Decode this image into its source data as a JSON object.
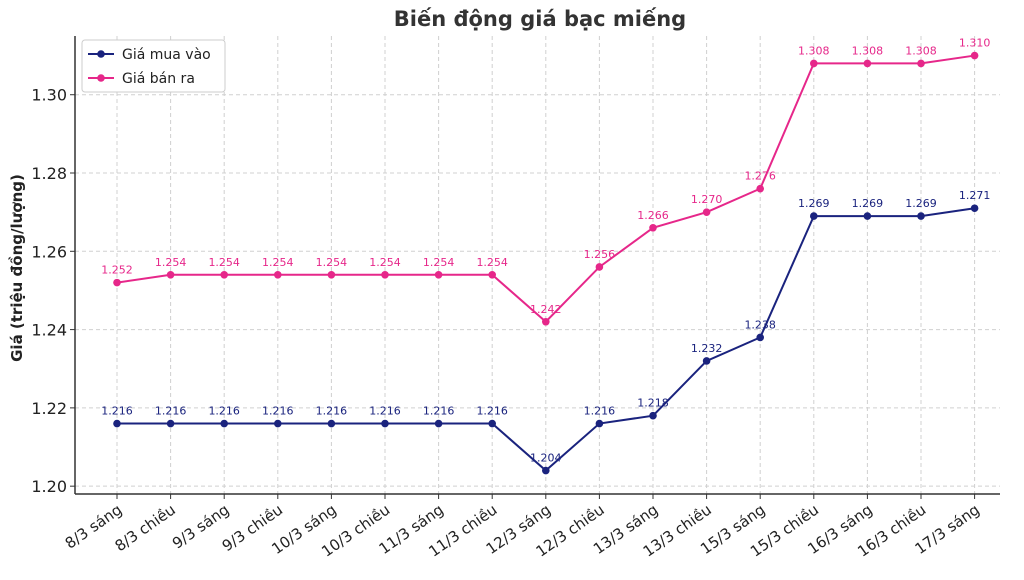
{
  "chart_data": {
    "type": "line",
    "title": "Biến động giá bạc miếng",
    "xlabel": "",
    "ylabel": "Giá (triệu đồng/lượng)",
    "categories": [
      "8/3 sáng",
      "8/3 chiều",
      "9/3 sáng",
      "9/3 chiều",
      "10/3 sáng",
      "10/3 chiều",
      "11/3 sáng",
      "11/3 chiều",
      "12/3 sáng",
      "12/3 chiều",
      "13/3 sáng",
      "13/3 chiều",
      "15/3 sáng",
      "15/3 chiều",
      "16/3 sáng",
      "16/3 chiều",
      "17/3 sáng"
    ],
    "ylim": [
      1.198,
      1.315
    ],
    "yticks": [
      1.2,
      1.22,
      1.24,
      1.26,
      1.28,
      1.3
    ],
    "ytick_labels": [
      "1.20",
      "1.22",
      "1.24",
      "1.26",
      "1.28",
      "1.30"
    ],
    "grid": true,
    "legend_position": "top-left",
    "series": [
      {
        "name": "Giá mua vào",
        "color": "#1a237e",
        "values": [
          1.216,
          1.216,
          1.216,
          1.216,
          1.216,
          1.216,
          1.216,
          1.216,
          1.204,
          1.216,
          1.218,
          1.232,
          1.238,
          1.269,
          1.269,
          1.269,
          1.271
        ],
        "labels": [
          "1.216",
          "1.216",
          "1.216",
          "1.216",
          "1.216",
          "1.216",
          "1.216",
          "1.216",
          "1.204",
          "1.216",
          "1.218",
          "1.232",
          "1.238",
          "1.269",
          "1.269",
          "1.269",
          "1.271"
        ]
      },
      {
        "name": "Giá bán ra",
        "color": "#e6278a",
        "values": [
          1.252,
          1.254,
          1.254,
          1.254,
          1.254,
          1.254,
          1.254,
          1.254,
          1.242,
          1.256,
          1.266,
          1.27,
          1.276,
          1.308,
          1.308,
          1.308,
          1.31
        ],
        "labels": [
          "1.252",
          "1.254",
          "1.254",
          "1.254",
          "1.254",
          "1.254",
          "1.254",
          "1.254",
          "1.242",
          "1.256",
          "1.266",
          "1.270",
          "1.276",
          "1.308",
          "1.308",
          "1.308",
          "1.310"
        ]
      }
    ]
  }
}
